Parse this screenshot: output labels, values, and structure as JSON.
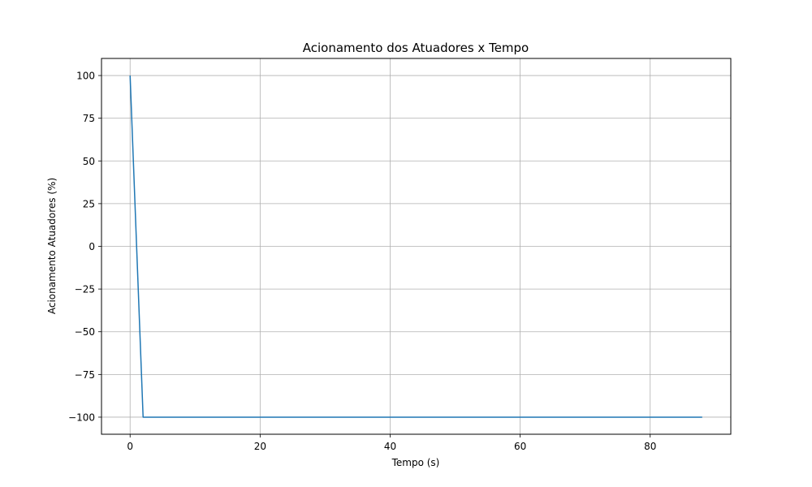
{
  "chart_data": {
    "type": "line",
    "title": "Acionamento dos Atuadores x Tempo",
    "xlabel": "Tempo (s)",
    "ylabel": "Acionamento Atuadores (%)",
    "xlim": [
      -4.4,
      92.4
    ],
    "ylim": [
      -110,
      110
    ],
    "xticks": [
      0,
      20,
      40,
      60,
      80
    ],
    "xtick_labels": [
      "0",
      "20",
      "40",
      "60",
      "80"
    ],
    "yticks": [
      100,
      75,
      50,
      25,
      0,
      -25,
      -50,
      -75,
      -100
    ],
    "ytick_labels": [
      "100",
      "75",
      "50",
      "25",
      "0",
      "−25",
      "−50",
      "−75",
      "−100"
    ],
    "grid": true,
    "series": [
      {
        "color": "#1f77b4",
        "x": [
          0,
          2,
          88
        ],
        "y": [
          100,
          -100,
          -100
        ]
      }
    ]
  }
}
